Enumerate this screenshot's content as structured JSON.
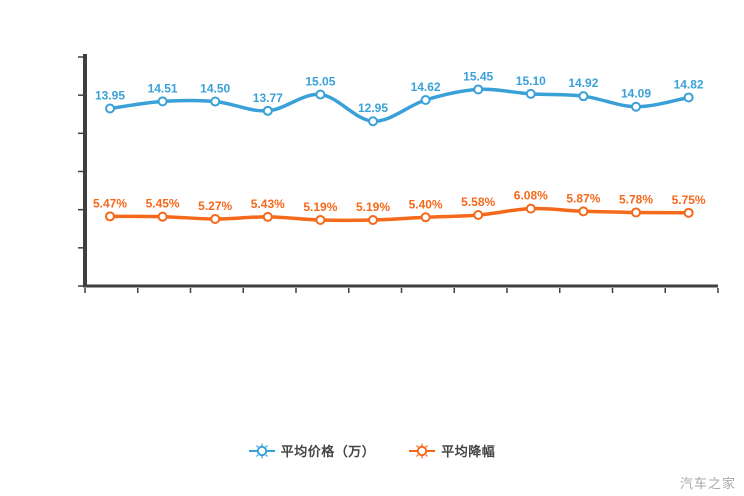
{
  "page": {
    "background": "#ffffff",
    "axis_color": "#3f3f3f"
  },
  "watermark": {
    "text": "汽车之家"
  },
  "legend": {
    "position": "bottom-center",
    "items": [
      {
        "label": "平均价格（万）",
        "color": "#3aa1d8",
        "marker": "ray-donut-marker"
      },
      {
        "label": "平均降幅",
        "color": "#f4691c",
        "marker": "ray-donut-marker"
      }
    ]
  },
  "chart_data": {
    "type": "line",
    "title": "",
    "xlabel": "",
    "ylabel": "",
    "x_axis": {
      "tick_count": 13,
      "labels_visible": false
    },
    "y_axis": {
      "tick_count": 7,
      "labels_visible": false,
      "range": [
        0,
        18
      ]
    },
    "grid": false,
    "smooth": true,
    "legend_position": "bottom",
    "point_count": 12,
    "series": [
      {
        "name": "平均价格（万）",
        "color": "#3aa1d8",
        "values": [
          13.95,
          14.51,
          14.5,
          13.77,
          15.05,
          12.95,
          14.62,
          15.45,
          15.1,
          14.92,
          14.09,
          14.82
        ],
        "labels": [
          "13.95",
          "14.51",
          "14.50",
          "13.77",
          "15.05",
          "12.95",
          "14.62",
          "15.45",
          "15.10",
          "14.92",
          "14.09",
          "14.82"
        ]
      },
      {
        "name": "平均降幅",
        "color": "#f4691c",
        "values": [
          5.47,
          5.45,
          5.27,
          5.43,
          5.19,
          5.19,
          5.4,
          5.58,
          6.08,
          5.87,
          5.78,
          5.75
        ],
        "labels": [
          "5.47%",
          "5.45%",
          "5.27%",
          "5.43%",
          "5.19%",
          "5.19%",
          "5.40%",
          "5.58%",
          "6.08%",
          "5.87%",
          "5.78%",
          "5.75%"
        ]
      }
    ]
  }
}
